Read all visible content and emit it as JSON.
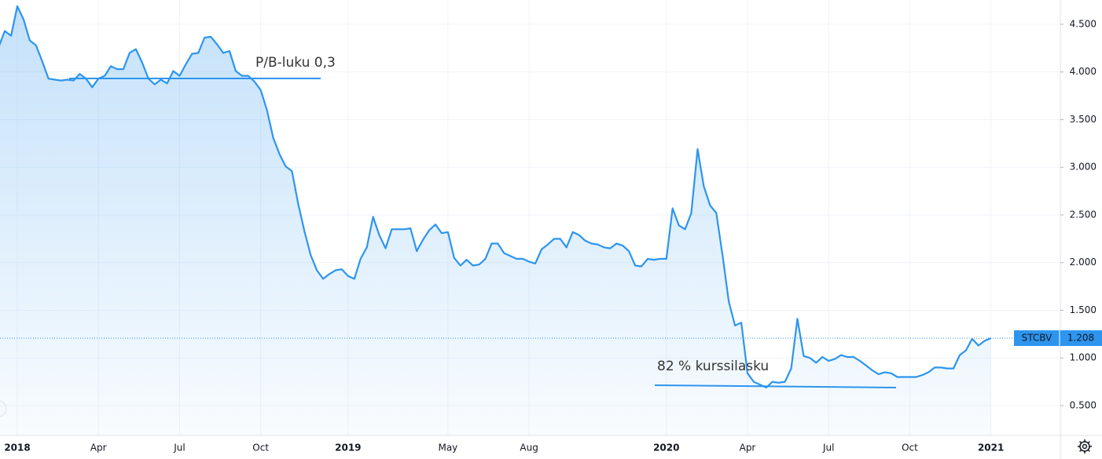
{
  "chart_data": {
    "type": "line",
    "categories": [
      null,
      null,
      null,
      "2018",
      null,
      null,
      null,
      null,
      null,
      null,
      null,
      null,
      null,
      null,
      null,
      null,
      "Apr",
      null,
      null,
      null,
      null,
      null,
      null,
      null,
      null,
      null,
      null,
      null,
      null,
      "Jul",
      null,
      null,
      null,
      null,
      null,
      null,
      null,
      null,
      null,
      null,
      null,
      null,
      "Oct",
      null,
      null,
      null,
      null,
      null,
      null,
      null,
      null,
      null,
      null,
      null,
      null,
      null,
      "2019",
      null,
      null,
      null,
      null,
      null,
      null,
      null,
      null,
      null,
      null,
      null,
      null,
      null,
      null,
      null,
      "May",
      null,
      null,
      null,
      null,
      null,
      null,
      null,
      null,
      null,
      null,
      null,
      null,
      "Aug",
      null,
      null,
      null,
      null,
      null,
      null,
      null,
      null,
      null,
      null,
      null,
      null,
      null,
      null,
      null,
      null,
      null,
      null,
      null,
      null,
      null,
      "2020",
      null,
      null,
      null,
      null,
      null,
      null,
      null,
      null,
      null,
      null,
      null,
      null,
      "Apr",
      null,
      null,
      null,
      null,
      null,
      null,
      null,
      null,
      null,
      null,
      null,
      null,
      "Jul",
      null,
      null,
      null,
      null,
      null,
      null,
      null,
      null,
      null,
      null,
      null,
      null,
      "Oct",
      null,
      null,
      null,
      null,
      null,
      null,
      null,
      null,
      null,
      null,
      null,
      null,
      "2021"
    ],
    "series": [
      {
        "name": "STCBV",
        "color": "#2d95ee",
        "last_label": "1.208",
        "values": [
          4.26,
          4.43,
          4.38,
          4.69,
          4.55,
          4.33,
          4.28,
          4.11,
          3.93,
          3.92,
          3.91,
          3.92,
          3.91,
          3.98,
          3.93,
          3.84,
          3.93,
          3.96,
          4.06,
          4.03,
          4.03,
          4.2,
          4.24,
          4.1,
          3.93,
          3.87,
          3.92,
          3.88,
          4.01,
          3.96,
          4.08,
          4.19,
          4.2,
          4.36,
          4.37,
          4.29,
          4.2,
          4.22,
          4.01,
          3.96,
          3.96,
          3.9,
          3.81,
          3.6,
          3.31,
          3.14,
          3.01,
          2.96,
          2.62,
          2.33,
          2.08,
          1.92,
          1.83,
          1.88,
          1.92,
          1.93,
          1.86,
          1.83,
          2.04,
          2.16,
          2.48,
          2.29,
          2.15,
          2.35,
          2.35,
          2.35,
          2.36,
          2.12,
          2.24,
          2.34,
          2.4,
          2.31,
          2.32,
          2.05,
          1.97,
          2.03,
          1.97,
          1.98,
          2.04,
          2.2,
          2.2,
          2.1,
          2.07,
          2.04,
          2.04,
          2.01,
          1.99,
          2.14,
          2.19,
          2.25,
          2.25,
          2.16,
          2.32,
          2.29,
          2.23,
          2.2,
          2.19,
          2.16,
          2.15,
          2.2,
          2.18,
          2.12,
          1.97,
          1.96,
          2.04,
          2.03,
          2.04,
          2.04,
          2.57,
          2.39,
          2.35,
          2.52,
          3.19,
          2.8,
          2.6,
          2.52,
          2.08,
          1.59,
          1.34,
          1.37,
          0.84,
          0.75,
          0.72,
          0.69,
          0.75,
          0.74,
          0.75,
          0.89,
          1.41,
          1.02,
          1.0,
          0.95,
          1.01,
          0.97,
          0.99,
          1.03,
          1.01,
          1.01,
          0.97,
          0.92,
          0.87,
          0.83,
          0.85,
          0.84,
          0.8,
          0.8,
          0.8,
          0.8,
          0.82,
          0.85,
          0.9,
          0.9,
          0.89,
          0.89,
          1.03,
          1.08,
          1.2,
          1.13,
          1.18,
          1.208
        ]
      }
    ],
    "ylim": [
      0.187,
      4.755
    ],
    "yticks": [
      {
        "value": 0.5,
        "label": "0.500"
      },
      {
        "value": 1,
        "label": "1.000"
      },
      {
        "value": 1.5,
        "label": "1.500"
      },
      {
        "value": 2,
        "label": "2.000"
      },
      {
        "value": 2.5,
        "label": "2.500"
      },
      {
        "value": 3,
        "label": "3.000"
      },
      {
        "value": 3.5,
        "label": "3.500"
      },
      {
        "value": 4,
        "label": "4.000"
      },
      {
        "value": 4.5,
        "label": "4.500"
      }
    ],
    "grid": true,
    "annotations": [
      "P/B-luku 0,3",
      "82 % kurssilasku"
    ]
  }
}
